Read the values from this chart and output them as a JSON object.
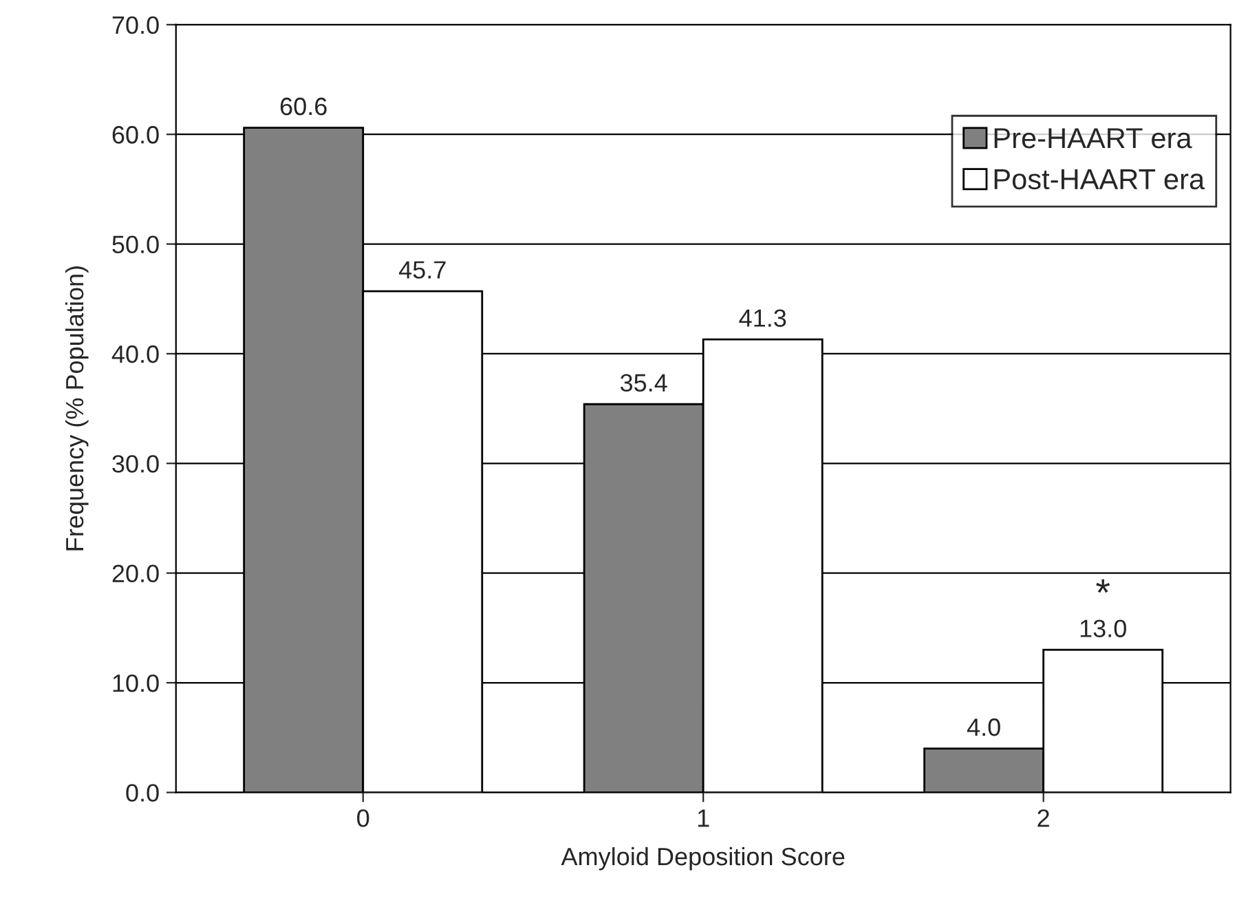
{
  "chart_data": {
    "type": "bar",
    "xlabel": "Amyloid Deposition Score",
    "ylabel": "Frequency (% Population)",
    "categories": [
      "0",
      "1",
      "2"
    ],
    "series": [
      {
        "name": "Pre-HAART era",
        "color": "#808080",
        "values": [
          60.6,
          35.4,
          4.0
        ],
        "value_labels": [
          "60.6",
          "35.4",
          "4.0"
        ]
      },
      {
        "name": "Post-HAART era",
        "color": "#ffffff",
        "values": [
          45.7,
          41.3,
          13.0
        ],
        "value_labels": [
          "45.7",
          "41.3",
          "13.0"
        ]
      }
    ],
    "ylim": [
      0,
      70
    ],
    "yticks": [
      {
        "value": 0,
        "label": "0.0"
      },
      {
        "value": 10,
        "label": "10.0"
      },
      {
        "value": 20,
        "label": "20.0"
      },
      {
        "value": 30,
        "label": "30.0"
      },
      {
        "value": 40,
        "label": "40.0"
      },
      {
        "value": 50,
        "label": "50.0"
      },
      {
        "value": 60,
        "label": "60.0"
      },
      {
        "value": 70,
        "label": "70.0"
      }
    ],
    "grid": "y",
    "legend": "top right",
    "annotations": [
      {
        "text": "*",
        "x": "2",
        "y": 13.0
      }
    ]
  }
}
